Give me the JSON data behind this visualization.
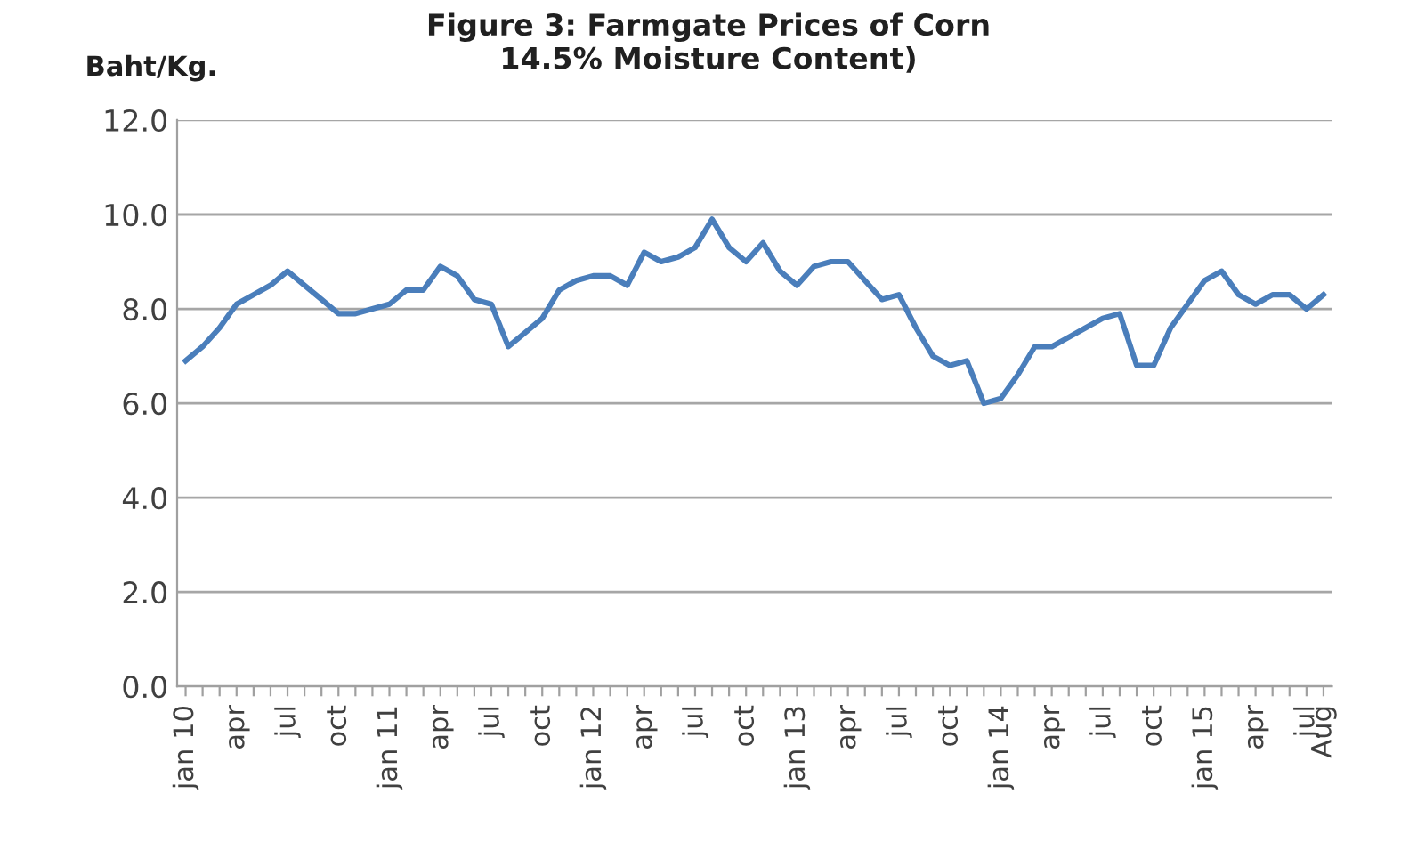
{
  "chart_data": {
    "type": "line",
    "title": "Figure 3: Farmgate Prices of Corn\n14.5% Moisture Content)",
    "ylabel": "Baht/Kg.",
    "categories": [
      "jan 10",
      null,
      null,
      "apr",
      null,
      null,
      "jul",
      null,
      null,
      "oct",
      null,
      null,
      "jan 11",
      null,
      null,
      "apr",
      null,
      null,
      "jul",
      null,
      null,
      "oct",
      null,
      null,
      "jan 12",
      null,
      null,
      "apr",
      null,
      null,
      "jul",
      null,
      null,
      "oct",
      null,
      null,
      "jan 13",
      null,
      null,
      "apr",
      null,
      null,
      "jul",
      null,
      null,
      "oct",
      null,
      null,
      "jan 14",
      null,
      null,
      "apr",
      null,
      null,
      "jul",
      null,
      null,
      "oct",
      null,
      null,
      "jan 15",
      null,
      null,
      "apr",
      null,
      null,
      "jul",
      "Aug"
    ],
    "series": [
      {
        "color": "#4a7ebb",
        "values": [
          6.9,
          7.2,
          7.6,
          8.1,
          8.3,
          8.5,
          8.8,
          8.5,
          8.2,
          7.9,
          7.9,
          8.0,
          8.1,
          8.4,
          8.4,
          8.9,
          8.7,
          8.2,
          8.1,
          7.2,
          7.5,
          7.8,
          8.4,
          8.6,
          8.7,
          8.7,
          8.5,
          9.2,
          9.0,
          9.1,
          9.3,
          9.9,
          9.3,
          9.0,
          9.4,
          8.8,
          8.5,
          8.9,
          9.0,
          9.0,
          8.6,
          8.2,
          8.3,
          7.6,
          7.0,
          6.8,
          6.9,
          6.0,
          6.1,
          6.6,
          7.2,
          7.2,
          7.4,
          7.6,
          7.8,
          7.9,
          6.8,
          6.8,
          7.6,
          8.1,
          8.6,
          8.8,
          8.3,
          8.1,
          8.3,
          8.3,
          8.0,
          8.3
        ]
      }
    ],
    "ylim": [
      0,
      12
    ],
    "yticks": [
      {
        "value": 0,
        "label": "0.0"
      },
      {
        "value": 2,
        "label": "2.0"
      },
      {
        "value": 4,
        "label": "4.0"
      },
      {
        "value": 6,
        "label": "6.0"
      },
      {
        "value": 8,
        "label": "8.0"
      },
      {
        "value": 10,
        "label": "10.0"
      },
      {
        "value": 12,
        "label": "12.0"
      }
    ],
    "grid": "y",
    "marker": "none",
    "line_style": "solid"
  }
}
